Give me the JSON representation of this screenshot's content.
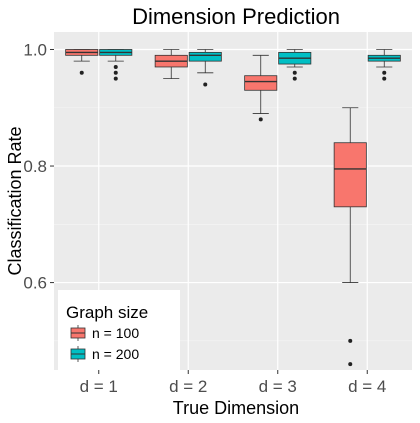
{
  "chart_data": {
    "type": "boxplot",
    "title": "Dimension Prediction",
    "xlabel": "True Dimension",
    "ylabel": "Classification Rate",
    "categories": [
      "d = 1",
      "d = 2",
      "d = 3",
      "d = 4"
    ],
    "ylim": [
      0.45,
      1.03
    ],
    "yticks": [
      0.6,
      0.8,
      1.0
    ],
    "ytick_labels": [
      "0.6",
      "0.8",
      "1.0"
    ],
    "grid": true,
    "legend": {
      "title": "Graph size",
      "placement": "bottom-left",
      "entries": [
        "n = 100",
        "n = 200"
      ]
    },
    "series": [
      {
        "name": "n = 100",
        "color": "#F8766D",
        "boxes": [
          {
            "whisker_low": 0.98,
            "q1": 0.99,
            "median": 0.995,
            "q3": 1.0,
            "whisker_high": 1.0,
            "outliers": [
              0.96
            ]
          },
          {
            "whisker_low": 0.95,
            "q1": 0.97,
            "median": 0.98,
            "q3": 0.99,
            "whisker_high": 1.0,
            "outliers": []
          },
          {
            "whisker_low": 0.89,
            "q1": 0.93,
            "median": 0.945,
            "q3": 0.955,
            "whisker_high": 0.99,
            "outliers": [
              0.88
            ]
          },
          {
            "whisker_low": 0.6,
            "q1": 0.73,
            "median": 0.795,
            "q3": 0.84,
            "whisker_high": 0.9,
            "outliers": [
              0.5,
              0.46
            ]
          }
        ]
      },
      {
        "name": "n = 200",
        "color": "#00BFC4",
        "boxes": [
          {
            "whisker_low": 0.98,
            "q1": 0.99,
            "median": 0.995,
            "q3": 1.0,
            "whisker_high": 1.0,
            "outliers": [
              0.97,
              0.96,
              0.95
            ]
          },
          {
            "whisker_low": 0.96,
            "q1": 0.98,
            "median": 0.99,
            "q3": 0.995,
            "whisker_high": 1.0,
            "outliers": [
              0.94
            ]
          },
          {
            "whisker_low": 0.97,
            "q1": 0.975,
            "median": 0.985,
            "q3": 0.995,
            "whisker_high": 1.0,
            "outliers": [
              0.96,
              0.95
            ]
          },
          {
            "whisker_low": 0.97,
            "q1": 0.98,
            "median": 0.985,
            "q3": 0.99,
            "whisker_high": 1.0,
            "outliers": [
              0.96,
              0.95
            ]
          }
        ]
      }
    ],
    "colors": {
      "panel_background": "#EBEBEB",
      "grid_major": "#FFFFFF",
      "grid_minor": "#F5F5F5"
    }
  }
}
